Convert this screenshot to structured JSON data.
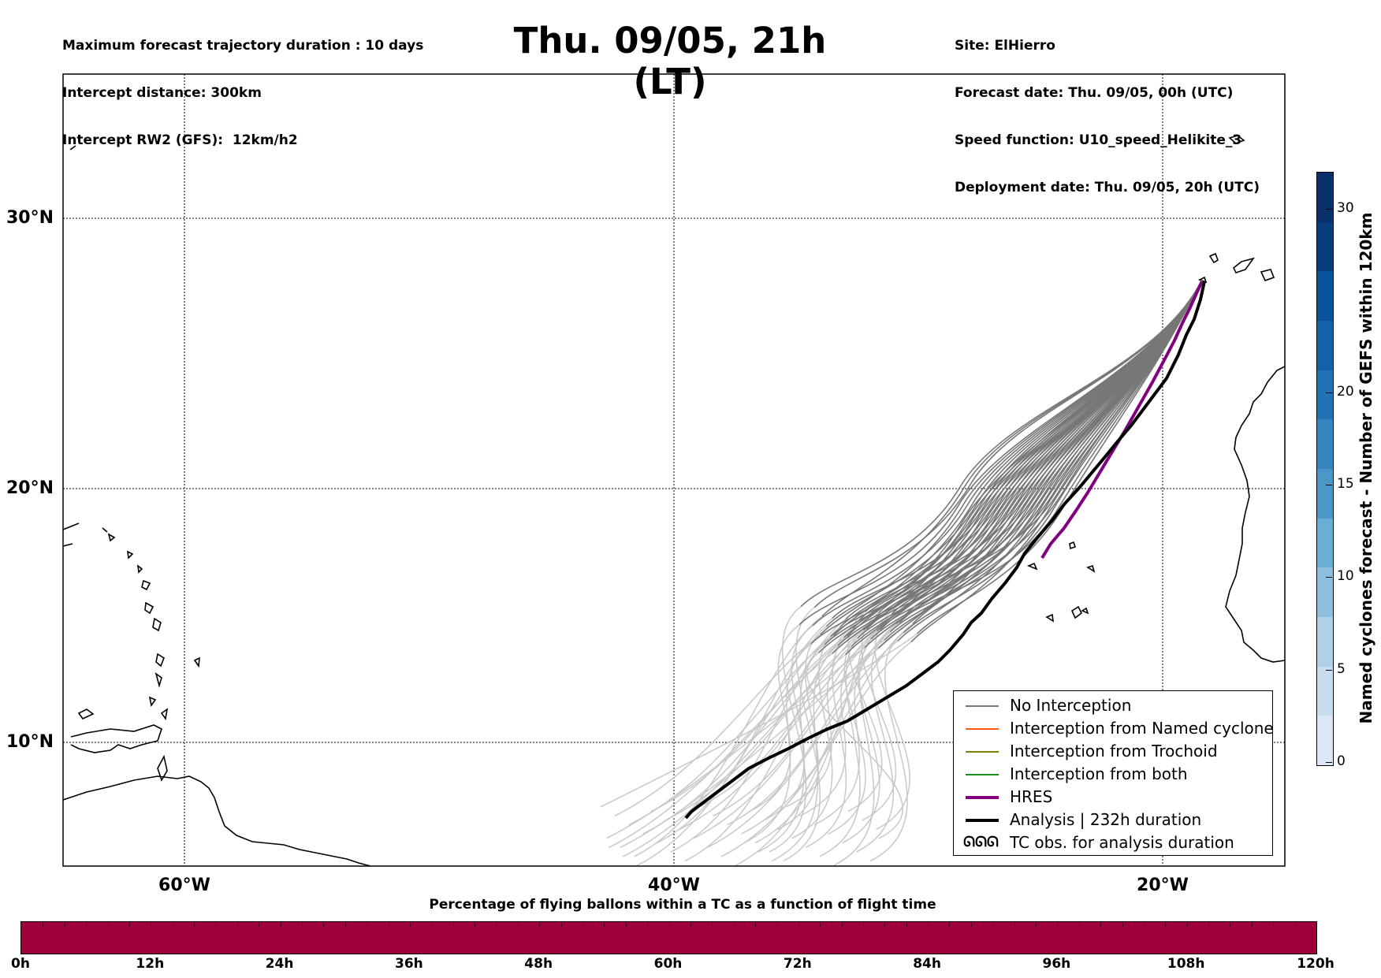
{
  "header": {
    "left_lines": [
      "Maximum forecast trajectory duration : 10 days",
      "Intercept distance: 300km",
      "Intercept RW2 (GFS):  12km/h2"
    ],
    "title": "Thu. 09/05, 21h (LT)",
    "right_lines": [
      "Site: ElHierro",
      "Forecast date: Thu. 09/05, 00h (UTC)",
      "Speed function: U10_speed_Helikite_3",
      "Deployment date: Thu. 09/05, 20h (UTC)"
    ]
  },
  "map": {
    "lat_labels": [
      "30°N",
      "20°N",
      "10°N"
    ],
    "lon_labels": [
      "60°W",
      "40°W",
      "20°W"
    ],
    "lon_range": [
      -65,
      -15
    ],
    "lat_range": [
      4.6,
      33.9
    ],
    "colors": {
      "no_interception": "#777777",
      "early_trajectory": "#c8c8c8",
      "hres": "#800080",
      "analysis": "#000000"
    }
  },
  "legend": {
    "items": [
      {
        "label": "No Interception",
        "color": "#777777",
        "style": "thin"
      },
      {
        "label": "Interception from Named cyclone",
        "color": "#ff5a14",
        "style": "thin"
      },
      {
        "label": "Interception from Trochoid",
        "color": "#808000",
        "style": "thin"
      },
      {
        "label": "Interception from both",
        "color": "#1e8c1e",
        "style": "thin"
      },
      {
        "label": "HRES",
        "color": "#800080",
        "style": "thick"
      },
      {
        "label": "Analysis | 232h duration",
        "color": "#000000",
        "style": "thick"
      },
      {
        "label": "TC obs. for analysis duration",
        "color": "#000000",
        "style": "symbol",
        "symbol_text": "ᘏᘏᘏ"
      }
    ]
  },
  "colorbar": {
    "label": "Named cyclones forecast - Number of GEFS within 120km",
    "ticks": [
      "30",
      "20",
      "15",
      "10",
      "5",
      "0"
    ],
    "colors_bottom_to_top": [
      "#dbe7f5",
      "#c8dcf0",
      "#b0cfe8",
      "#8ebfdf",
      "#6aaed6",
      "#4a98c9",
      "#3585c0",
      "#2171b5",
      "#1361a8",
      "#08519c",
      "#083d7e",
      "#08306b"
    ]
  },
  "flight_bar": {
    "title": "Percentage of flying ballons within a TC as a function of flight time",
    "ticks": [
      "0h",
      "12h",
      "24h",
      "36h",
      "48h",
      "60h",
      "72h",
      "84h",
      "96h",
      "108h",
      "120h"
    ],
    "color": "#9f003b"
  }
}
